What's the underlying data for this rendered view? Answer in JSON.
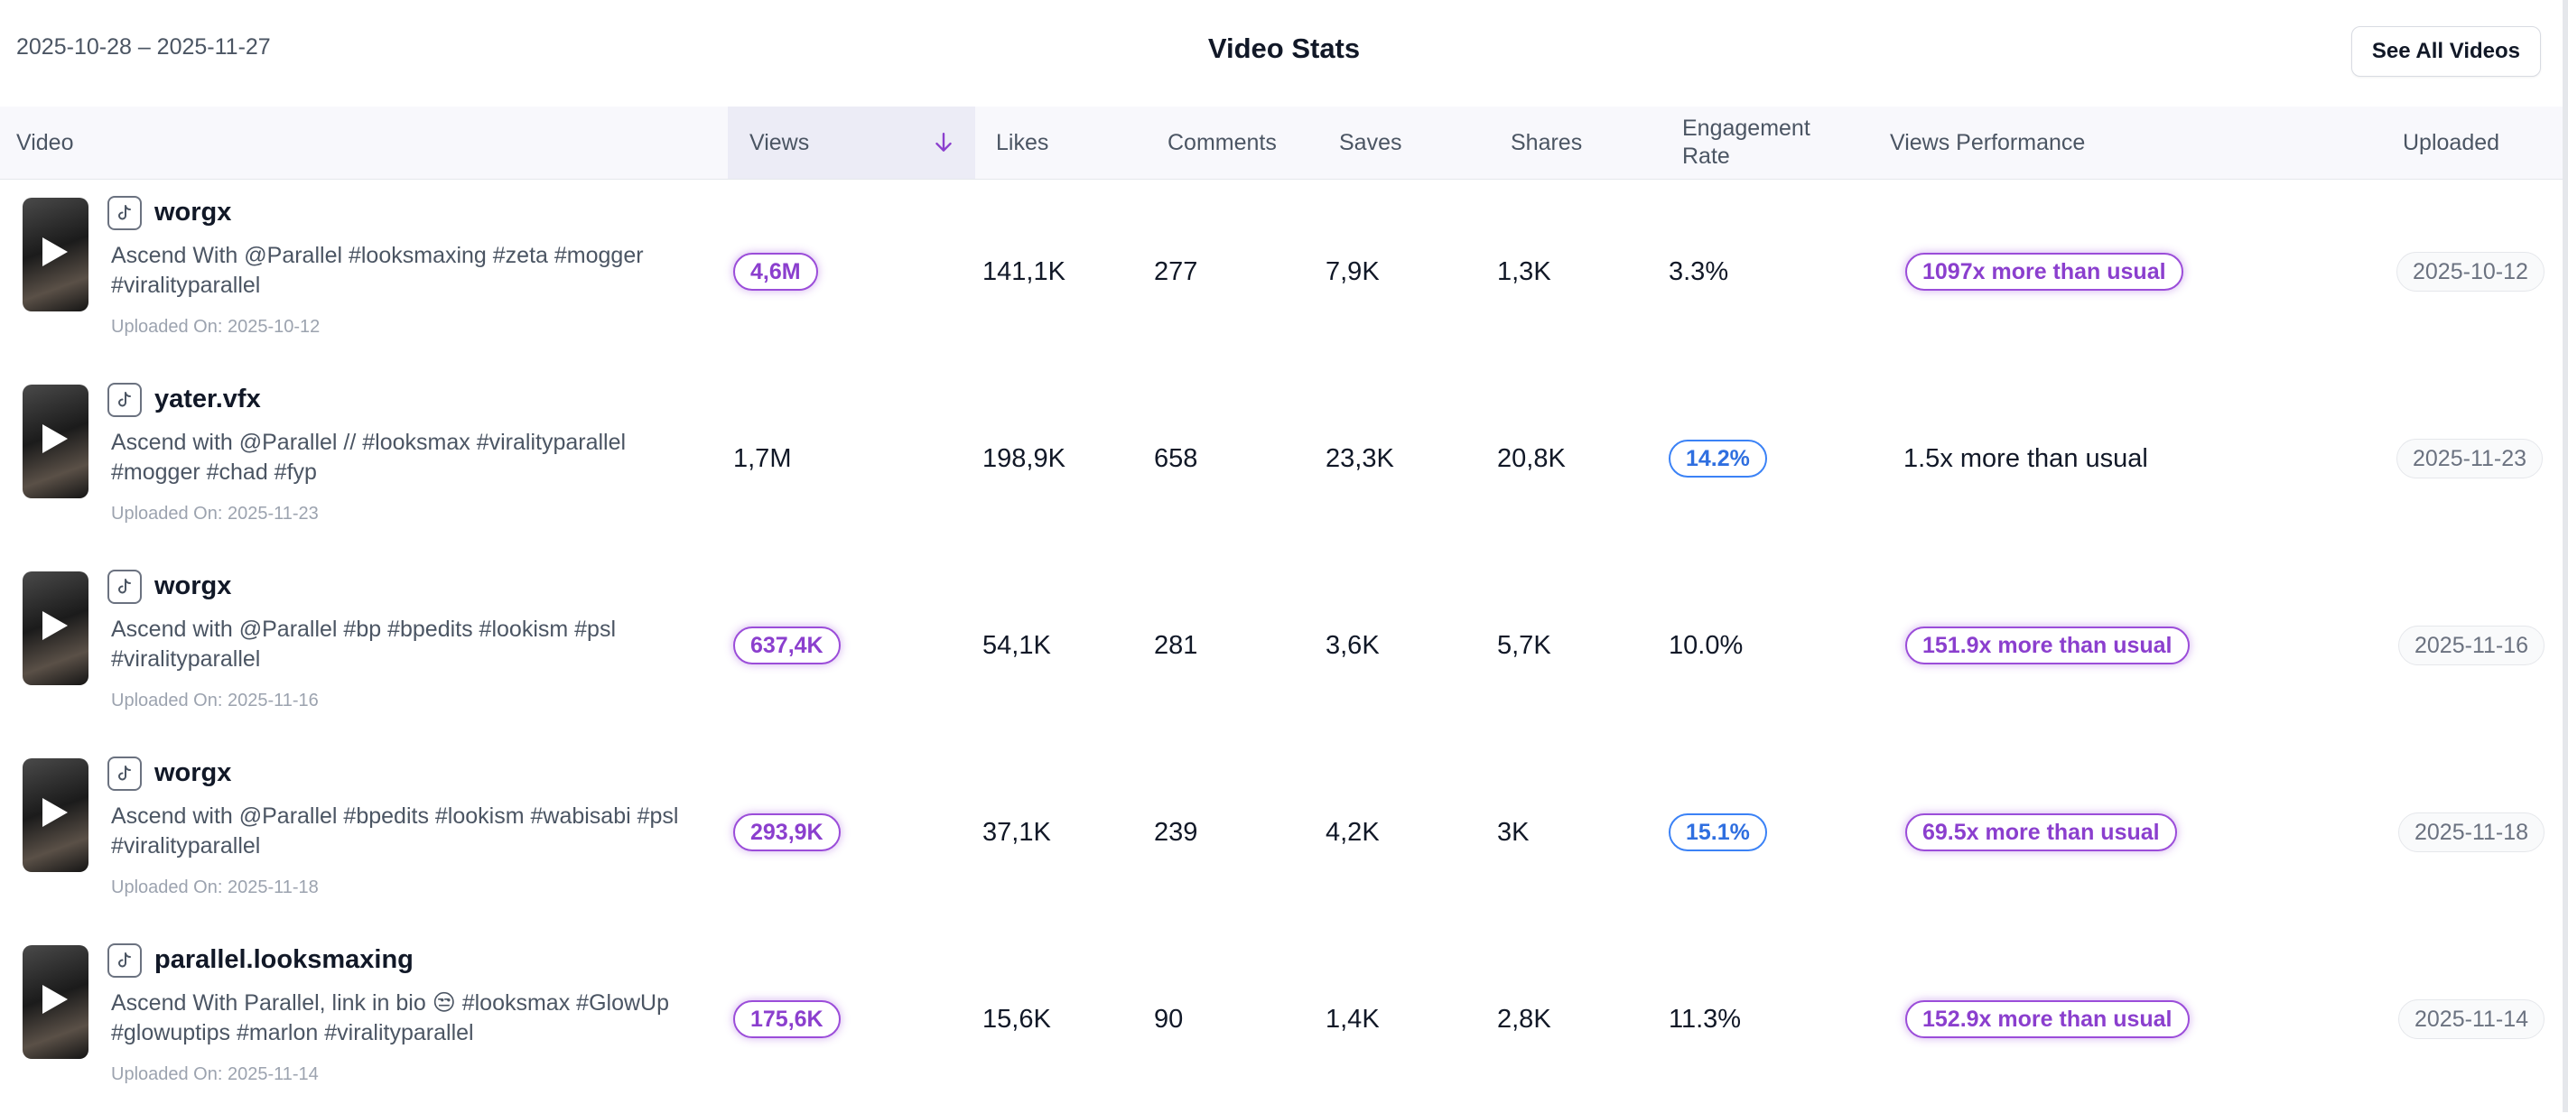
{
  "header": {
    "date_range": "2025-10-28 – 2025-11-27",
    "title": "Video Stats",
    "see_all_label": "See All Videos"
  },
  "columns": {
    "video": "Video",
    "views": "Views",
    "likes": "Likes",
    "comments": "Comments",
    "saves": "Saves",
    "shares": "Shares",
    "engagement": "Engagement Rate",
    "performance": "Views Performance",
    "uploaded": "Uploaded"
  },
  "sort": {
    "column": "views",
    "direction": "desc",
    "icon": "arrow-down-icon"
  },
  "colors": {
    "purple": "#9b4dd9",
    "blue": "#3b82f6",
    "text": "#111827",
    "muted": "#4b5563"
  },
  "rows": [
    {
      "author": "worgx",
      "caption": "Ascend With @Parallel #looksmaxing #zeta #mogger #viralityparallel",
      "uploaded_on": "Uploaded On: 2025-10-12",
      "views": "4,6M",
      "likes": "141,1K",
      "comments": "277",
      "saves": "7,9K",
      "shares": "1,3K",
      "engagement": "3.3%",
      "performance": "1097x more than usual",
      "uploaded": "2025-10-12"
    },
    {
      "author": "yater.vfx",
      "caption": "Ascend with @Parallel // #looksmax #viralityparallel #mogger #chad #fyp",
      "uploaded_on": "Uploaded On: 2025-11-23",
      "views": "1,7M",
      "likes": "198,9K",
      "comments": "658",
      "saves": "23,3K",
      "shares": "20,8K",
      "engagement": "14.2%",
      "performance": "1.5x more than usual",
      "uploaded": "2025-11-23"
    },
    {
      "author": "worgx",
      "caption": "Ascend with @Parallel #bp #bpedits #lookism #psl #viralityparallel",
      "uploaded_on": "Uploaded On: 2025-11-16",
      "views": "637,4K",
      "likes": "54,1K",
      "comments": "281",
      "saves": "3,6K",
      "shares": "5,7K",
      "engagement": "10.0%",
      "performance": "151.9x more than usual",
      "uploaded": "2025-11-16"
    },
    {
      "author": "worgx",
      "caption": "Ascend with @Parallel #bpedits #lookism #wabisabi #psl #viralityparallel",
      "uploaded_on": "Uploaded On: 2025-11-18",
      "views": "293,9K",
      "likes": "37,1K",
      "comments": "239",
      "saves": "4,2K",
      "shares": "3K",
      "engagement": "15.1%",
      "performance": "69.5x more than usual",
      "uploaded": "2025-11-18"
    },
    {
      "author": "parallel.looksmaxing",
      "caption": "Ascend With Parallel, link in bio 😒 #looksmax #GlowUp #glowuptips #marlon #viralityparallel",
      "uploaded_on": "Uploaded On: 2025-11-14",
      "views": "175,6K",
      "likes": "15,6K",
      "comments": "90",
      "saves": "1,4K",
      "shares": "2,8K",
      "engagement": "11.3%",
      "performance": "152.9x more than usual",
      "uploaded": "2025-11-14"
    }
  ]
}
